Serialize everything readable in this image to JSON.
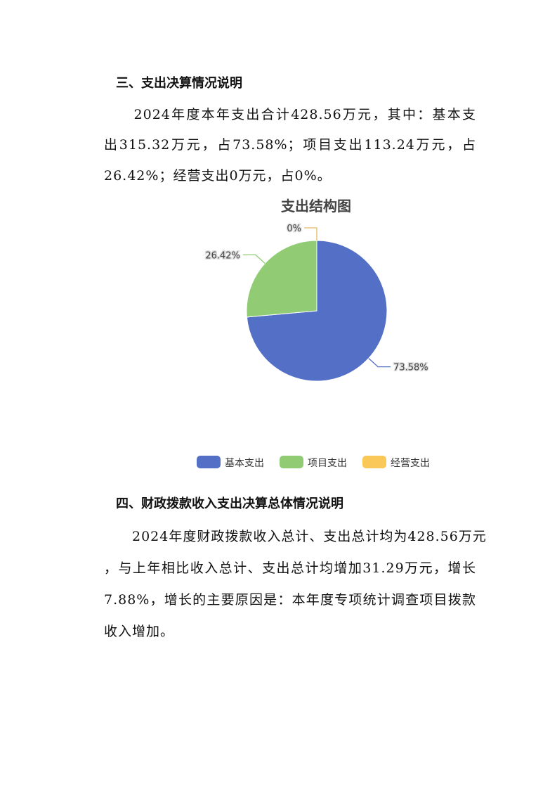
{
  "section3": {
    "heading": "三、支出决算情况说明",
    "lines": [
      "　　2024年度本年支出合计428.56万元，其中：基本支",
      "出315.32万元，占73.58%；项目支出113.24万元，占",
      "26.42%；经营支出0万元，占0%。"
    ]
  },
  "chart_data": {
    "type": "pie",
    "title": "支出结构图",
    "categories": [
      "基本支出",
      "项目支出",
      "经营支出"
    ],
    "values": [
      73.58,
      26.42,
      0
    ],
    "labels": [
      "73.58%",
      "26.42%",
      "0%"
    ],
    "colors": [
      "#5470c6",
      "#91cc75",
      "#fac858"
    ],
    "legend_position": "bottom"
  },
  "section4": {
    "heading": "四、财政拨款收入支出决算总体情况说明",
    "lines": [
      "　　2024年度财政拨款收入总计、支出总计均为428.56万元",
      "，与上年相比收入总计、支出总计均增加31.29万元，增长",
      "7.88%，增长的主要原因是：本年度专项统计调查项目拨款",
      "收入增加。"
    ]
  }
}
